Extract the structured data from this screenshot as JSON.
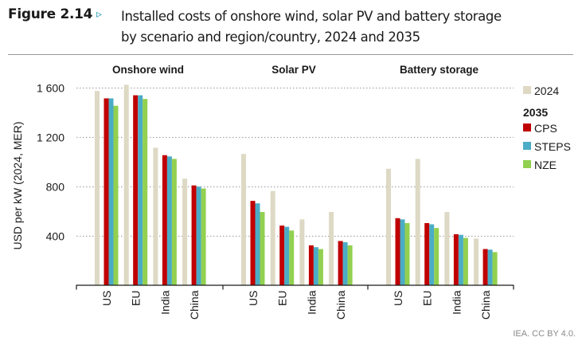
{
  "figure": {
    "label": "Figure 2.14",
    "arrow_icon": "▹",
    "title_line1": "Installed costs of onshore wind, solar PV and battery storage",
    "title_line2": "by scenario and region/country, 2024 and 2035",
    "source": "IEA. CC BY 4.0."
  },
  "colors": {
    "accent": "#2a9bb5",
    "2024": "#ddd9c4",
    "CPS": "#c00000",
    "STEPS": "#4bacc6",
    "NZE": "#92d050",
    "grid": "#a6a6a6"
  },
  "chart_data": {
    "type": "bar",
    "title": "Installed costs of onshore wind, solar PV and battery storage by scenario and region/country, 2024 and 2035",
    "xlabel": "",
    "ylabel": "USD per kW (2024, MER)",
    "ylim": [
      0,
      1600
    ],
    "yticks": [
      400,
      800,
      1200,
      1600
    ],
    "ytick_labels": [
      "400",
      "800",
      "1 200",
      "1 600"
    ],
    "grid": true,
    "legend_position": "right",
    "legend": {
      "items": [
        {
          "key": "2024",
          "label": "2024"
        }
      ],
      "group_heading": "2035",
      "group_items": [
        {
          "key": "CPS",
          "label": "CPS"
        },
        {
          "key": "STEPS",
          "label": "STEPS"
        },
        {
          "key": "NZE",
          "label": "NZE"
        }
      ]
    },
    "series_keys": [
      "2024",
      "CPS",
      "STEPS",
      "NZE"
    ],
    "categories": [
      "US",
      "EU",
      "India",
      "China"
    ],
    "panels": [
      {
        "title": "Onshore wind",
        "values": {
          "US": {
            "2024": 1570,
            "CPS": 1510,
            "STEPS": 1510,
            "NZE": 1450
          },
          "EU": {
            "2024": 1620,
            "CPS": 1535,
            "STEPS": 1535,
            "NZE": 1505
          },
          "India": {
            "2024": 1110,
            "CPS": 1050,
            "STEPS": 1040,
            "NZE": 1020
          },
          "China": {
            "2024": 860,
            "CPS": 805,
            "STEPS": 795,
            "NZE": 780
          }
        }
      },
      {
        "title": "Solar PV",
        "values": {
          "US": {
            "2024": 1060,
            "CPS": 680,
            "STEPS": 660,
            "NZE": 590
          },
          "EU": {
            "2024": 760,
            "CPS": 480,
            "STEPS": 470,
            "NZE": 440
          },
          "India": {
            "2024": 530,
            "CPS": 320,
            "STEPS": 305,
            "NZE": 290
          },
          "China": {
            "2024": 590,
            "CPS": 355,
            "STEPS": 345,
            "NZE": 320
          }
        }
      },
      {
        "title": "Battery storage",
        "values": {
          "US": {
            "2024": 940,
            "CPS": 540,
            "STEPS": 530,
            "NZE": 500
          },
          "EU": {
            "2024": 1020,
            "CPS": 500,
            "STEPS": 490,
            "NZE": 460
          },
          "India": {
            "2024": 590,
            "CPS": 410,
            "STEPS": 405,
            "NZE": 380
          },
          "China": {
            "2024": 375,
            "CPS": 290,
            "STEPS": 285,
            "NZE": 265
          }
        }
      }
    ]
  }
}
